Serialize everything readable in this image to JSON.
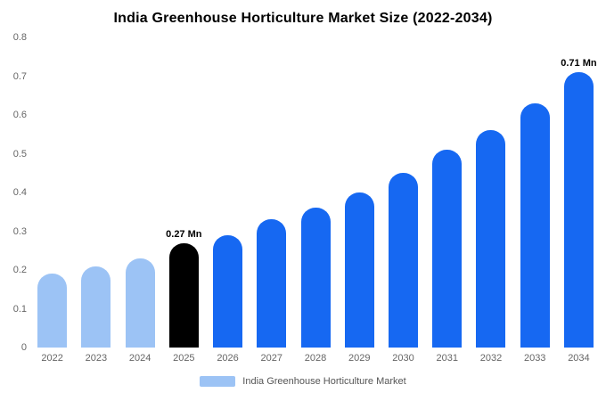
{
  "title": "India Greenhouse Horticulture Market Size (2022-2034)",
  "legend": {
    "label": "India Greenhouse Horticulture Market",
    "swatch_color": "#9cc3f5"
  },
  "colors": {
    "past_bar": "#9cc3f5",
    "current_bar": "#000000",
    "forecast_bar": "#1668f2",
    "axis_text": "#666666",
    "background": "#ffffff"
  },
  "chart_data": {
    "type": "bar",
    "title": "India Greenhouse Horticulture Market Size (2022-2034)",
    "xlabel": "",
    "ylabel": "",
    "ylim": [
      0,
      0.8
    ],
    "grid": false,
    "legend_position": "bottom",
    "categories": [
      "2022",
      "2023",
      "2024",
      "2025",
      "2026",
      "2027",
      "2028",
      "2029",
      "2030",
      "2031",
      "2032",
      "2033",
      "2034"
    ],
    "values": [
      0.19,
      0.21,
      0.23,
      0.27,
      0.29,
      0.33,
      0.36,
      0.4,
      0.45,
      0.51,
      0.56,
      0.63,
      0.71
    ],
    "bar_colors": [
      "#9cc3f5",
      "#9cc3f5",
      "#9cc3f5",
      "#000000",
      "#1668f2",
      "#1668f2",
      "#1668f2",
      "#1668f2",
      "#1668f2",
      "#1668f2",
      "#1668f2",
      "#1668f2",
      "#1668f2"
    ],
    "yticks": [
      {
        "value": 0,
        "label": "0"
      },
      {
        "value": 0.1,
        "label": "0.1"
      },
      {
        "value": 0.2,
        "label": "0.2"
      },
      {
        "value": 0.3,
        "label": "0.3"
      },
      {
        "value": 0.4,
        "label": "0.4"
      },
      {
        "value": 0.5,
        "label": "0.5"
      },
      {
        "value": 0.6,
        "label": "0.6"
      },
      {
        "value": 0.7,
        "label": "0.7"
      },
      {
        "value": 0.8,
        "label": "0.8"
      }
    ],
    "annotations": [
      {
        "index": 3,
        "label": "0.27 Mn"
      },
      {
        "index": 12,
        "label": "0.71 Mn"
      }
    ]
  }
}
